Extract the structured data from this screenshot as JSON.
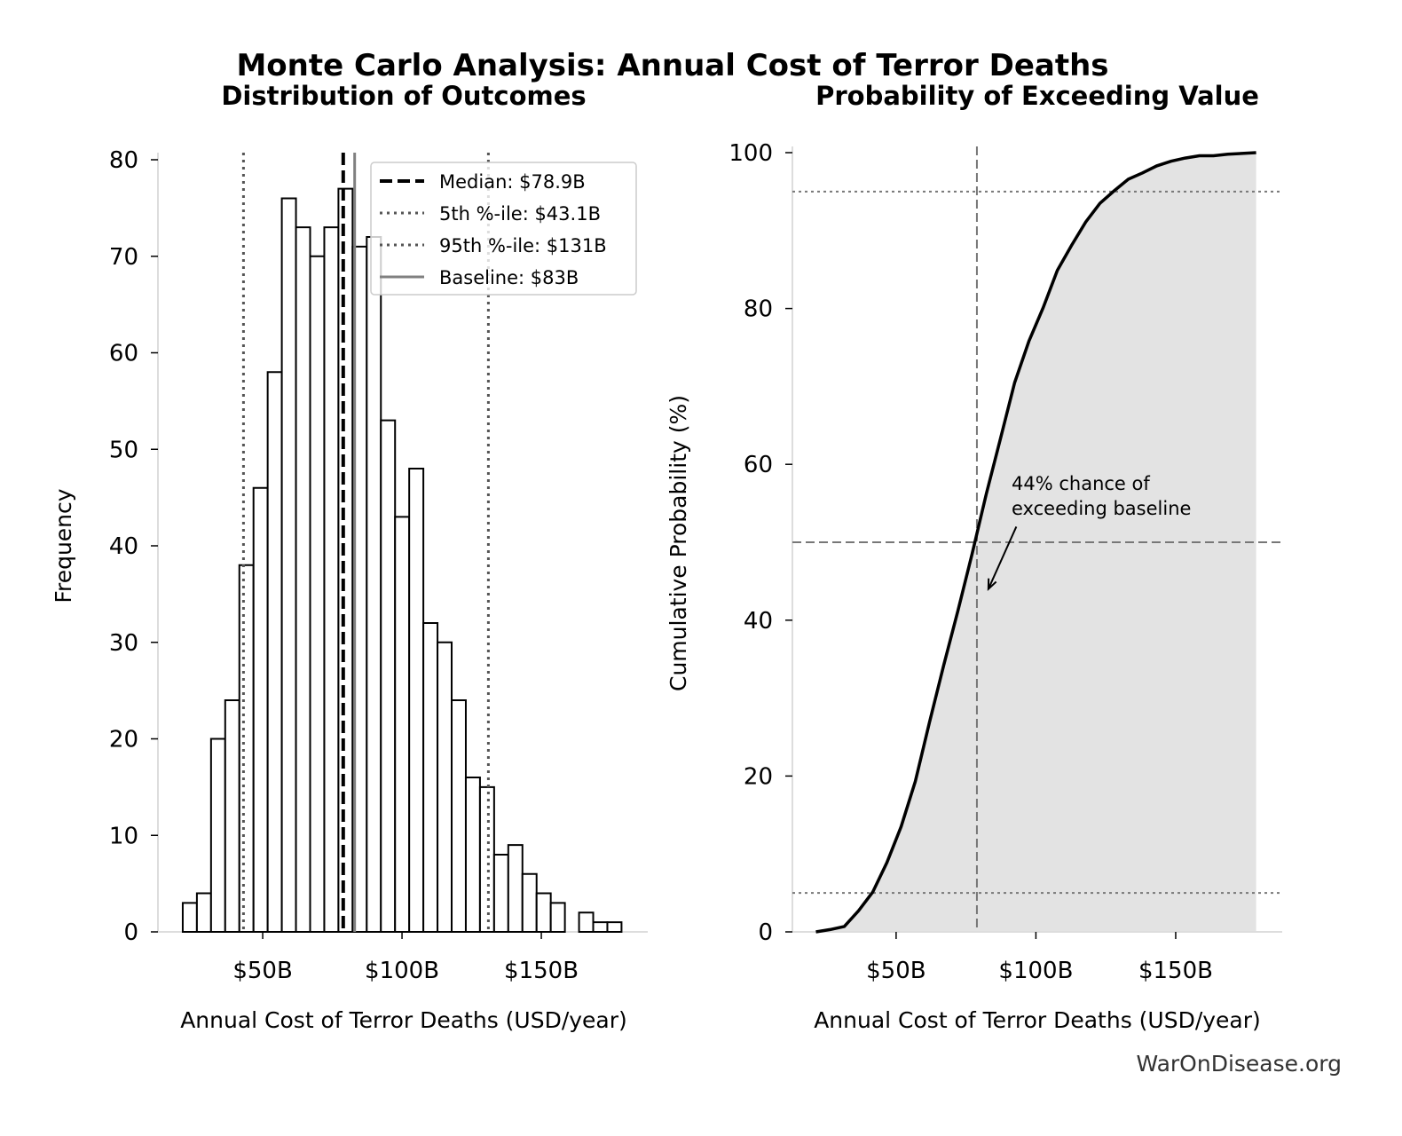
{
  "title": "Monte Carlo Analysis: Annual Cost of Terror Deaths",
  "watermark": "WarOnDisease.org",
  "chart_data": [
    {
      "type": "bar",
      "title": "Distribution of Outcomes",
      "xlabel": "Annual Cost of Terror Deaths (USD/year)",
      "ylabel": "Frequency",
      "xlim": [
        12.4,
        188.2
      ],
      "ylim": [
        0,
        80.7
      ],
      "bin_start": 21.3,
      "bin_width": 5.08,
      "values": [
        3,
        4,
        20,
        24,
        38,
        46,
        58,
        76,
        73,
        70,
        73,
        77,
        71,
        72,
        53,
        43,
        48,
        32,
        30,
        24,
        16,
        15,
        8,
        9,
        6,
        4,
        3,
        0,
        2,
        1,
        1
      ],
      "xticks": [
        {
          "value": 50,
          "label": "$50B"
        },
        {
          "value": 100,
          "label": "$100B"
        },
        {
          "value": 150,
          "label": "$150B"
        }
      ],
      "yticks": [
        0,
        10,
        20,
        30,
        40,
        50,
        60,
        70,
        80
      ],
      "reference_lines": [
        {
          "label": "Median: $78.9B",
          "value": 78.9,
          "style": "dashed",
          "color": "#000000"
        },
        {
          "label": "5th %-ile: $43.1B",
          "value": 43.1,
          "style": "dotted",
          "color": "#555555"
        },
        {
          "label": "95th %-ile: $131B",
          "value": 131,
          "style": "dotted",
          "color": "#555555"
        },
        {
          "label": "Baseline: $83B",
          "value": 83,
          "style": "solid",
          "color": "#808080"
        }
      ],
      "legend_position": "top-right",
      "grid": false
    },
    {
      "type": "area",
      "title": "Probability of Exceeding Value",
      "xlabel": "Annual Cost of Terror Deaths (USD/year)",
      "ylabel": "Cumulative Probability (%)",
      "xlim": [
        12.9,
        188.1
      ],
      "ylim": [
        0,
        100
      ],
      "xticks": [
        {
          "value": 50,
          "label": "$50B"
        },
        {
          "value": 100,
          "label": "$100B"
        },
        {
          "value": 150,
          "label": "$150B"
        }
      ],
      "yticks": [
        0,
        20,
        40,
        60,
        80,
        100
      ],
      "fill_color": "#e3e3e3",
      "line_color": "#000000",
      "reference_lines": {
        "vertical": [
          78.9
        ],
        "horizontal_dashed": [
          50
        ],
        "horizontal_dotted": [
          5,
          95
        ]
      },
      "annotation": {
        "lines": [
          "44% chance of",
          "exceeding baseline"
        ],
        "arrow_from": [
          93,
          52
        ],
        "arrow_to": [
          83,
          44
        ]
      },
      "grid": false
    }
  ]
}
